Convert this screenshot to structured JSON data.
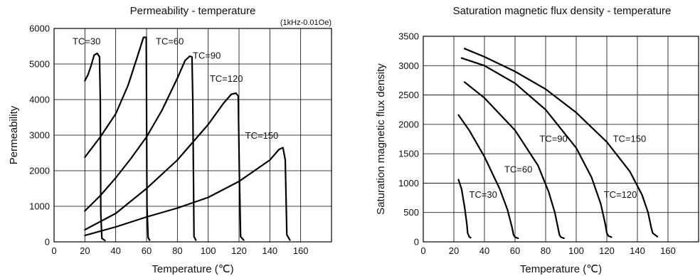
{
  "chart_data": [
    {
      "type": "line",
      "title": "Permeability - temperature",
      "note": "(1kHz-0.01Oe)",
      "xlabel": "Temperature (℃)",
      "ylabel": "Permeability",
      "xlim": [
        0,
        180
      ],
      "ylim": [
        0,
        6000
      ],
      "x_ticks": [
        "0",
        "20",
        "40",
        "60",
        "80",
        "100",
        "120",
        "140",
        "160"
      ],
      "y_ticks": [
        "0",
        "1000",
        "2000",
        "3000",
        "4000",
        "5000",
        "6000"
      ],
      "grid": true,
      "series": [
        {
          "name": "TC=30",
          "x": [
            20,
            22,
            24,
            26,
            28,
            29.5,
            30,
            30.3,
            31,
            33
          ],
          "y": [
            4530,
            4700,
            4950,
            5250,
            5300,
            5200,
            4000,
            800,
            100,
            40
          ]
        },
        {
          "name": "TC=60",
          "x": [
            20,
            30,
            40,
            48,
            54,
            58,
            59.8,
            60.3,
            61,
            62
          ],
          "y": [
            2380,
            2950,
            3600,
            4400,
            5200,
            5750,
            5750,
            1000,
            120,
            50
          ]
        },
        {
          "name": "TC=90",
          "x": [
            20,
            30,
            40,
            50,
            60,
            70,
            80,
            85,
            88,
            89.5,
            90,
            90.8,
            92
          ],
          "y": [
            870,
            1300,
            1800,
            2350,
            2950,
            3700,
            4600,
            5100,
            5220,
            5200,
            4000,
            150,
            50
          ]
        },
        {
          "name": "TC=120",
          "x": [
            20,
            40,
            60,
            80,
            100,
            110,
            115,
            118,
            119.5,
            120.2,
            121,
            123
          ],
          "y": [
            340,
            800,
            1500,
            2300,
            3300,
            3900,
            4150,
            4180,
            4100,
            2000,
            150,
            50
          ]
        },
        {
          "name": "TC=150",
          "x": [
            20,
            40,
            60,
            80,
            100,
            120,
            140,
            146,
            148.5,
            150,
            151,
            153
          ],
          "y": [
            180,
            420,
            700,
            950,
            1250,
            1700,
            2300,
            2600,
            2650,
            2300,
            200,
            50
          ]
        }
      ],
      "labels": [
        {
          "text": "TC=30",
          "x": 12,
          "y": 5550
        },
        {
          "text": "TC=60",
          "x": 66,
          "y": 5550
        },
        {
          "text": "TC=90",
          "x": 90,
          "y": 5150
        },
        {
          "text": "TC=120",
          "x": 101,
          "y": 4500
        },
        {
          "text": "TC=150",
          "x": 124,
          "y": 2900
        }
      ]
    },
    {
      "type": "line",
      "title": "Saturation magnetic flux density - temperature",
      "xlabel": "Temperature (℃)",
      "ylabel": "Saturation magnetic flux density",
      "xlim": [
        0,
        180
      ],
      "ylim": [
        0,
        3500
      ],
      "x_ticks": [
        "0",
        "20",
        "40",
        "60",
        "80",
        "100",
        "120",
        "140",
        "160"
      ],
      "y_ticks": [
        "0",
        "500",
        "1000",
        "1500",
        "2000",
        "2500",
        "3000",
        "3500"
      ],
      "grid": true,
      "series": [
        {
          "name": "TC=30",
          "x": [
            23,
            25,
            27,
            28.5,
            29,
            30,
            31
          ],
          "y": [
            1060,
            900,
            600,
            300,
            150,
            90,
            70
          ]
        },
        {
          "name": "TC=60",
          "x": [
            23,
            30,
            40,
            50,
            55,
            58,
            59,
            60,
            62
          ],
          "y": [
            2160,
            1900,
            1450,
            900,
            550,
            250,
            120,
            80,
            60
          ]
        },
        {
          "name": "TC=90",
          "x": [
            27,
            40,
            60,
            75,
            82,
            86,
            88,
            89,
            90,
            92
          ],
          "y": [
            2720,
            2450,
            1900,
            1300,
            850,
            500,
            250,
            120,
            80,
            60
          ]
        },
        {
          "name": "TC=120",
          "x": [
            25,
            40,
            60,
            80,
            100,
            110,
            116,
            119,
            120,
            121,
            123
          ],
          "y": [
            3130,
            3000,
            2700,
            2250,
            1600,
            1100,
            650,
            300,
            150,
            100,
            80
          ]
        },
        {
          "name": "TC=150",
          "x": [
            27,
            40,
            60,
            80,
            100,
            120,
            135,
            143,
            147,
            149,
            150,
            153
          ],
          "y": [
            3290,
            3150,
            2900,
            2600,
            2200,
            1700,
            1200,
            800,
            500,
            250,
            150,
            90
          ]
        }
      ],
      "labels": [
        {
          "text": "TC=30",
          "x": 30,
          "y": 750
        },
        {
          "text": "TC=60",
          "x": 53,
          "y": 1180
        },
        {
          "text": "TC=90",
          "x": 76,
          "y": 1700
        },
        {
          "text": "TC=120",
          "x": 118,
          "y": 750
        },
        {
          "text": "TC=150",
          "x": 124,
          "y": 1700
        }
      ]
    }
  ]
}
